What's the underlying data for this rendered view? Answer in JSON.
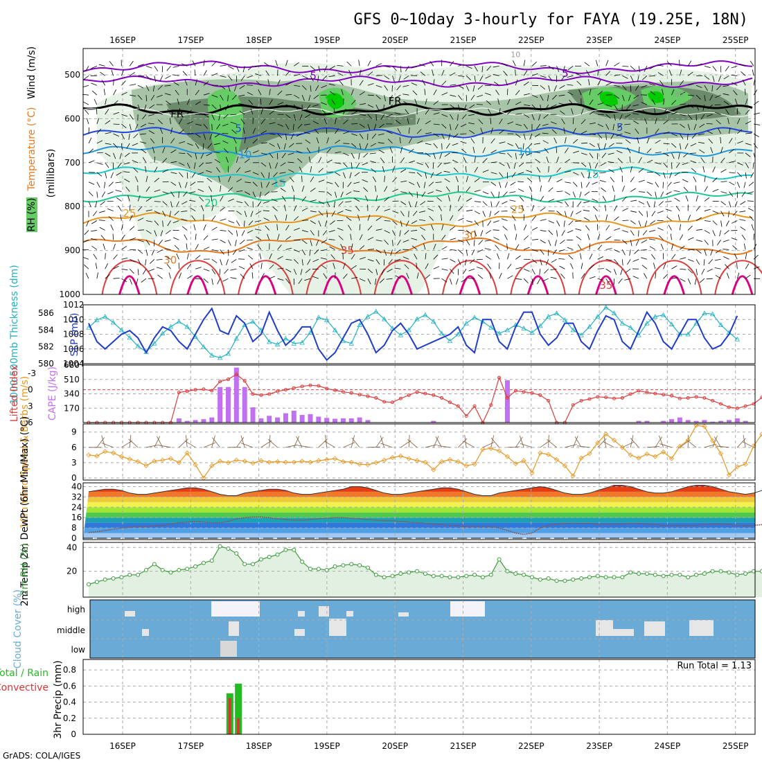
{
  "title": "GFS 0~10day 3-hourly for FAYA (19.25E, 18N)",
  "credit": "GrADS: COLA/IGES",
  "colors": {
    "rh_light": "#e6f2e6",
    "rh_mid": "#a8c4a8",
    "rh_dark": "#6c8a6c",
    "rh_green": "#66cc66",
    "rh_bright": "#00cc00",
    "wind_purple": "#8000c0",
    "freezing": "#000000",
    "t5": "#1e46dc",
    "t10": "#1e96dc",
    "t15": "#1ec8c8",
    "t20": "#1ec88c",
    "t25": "#e6961e",
    "t30": "#e6781e",
    "t35": "#dc3c3c",
    "t40": "#dc0080",
    "slp": "#1e3cc8",
    "thickness": "#20b0c0",
    "lifted": "#dc3c3c",
    "cape": "#c070f0",
    "wind10": "#e6961e",
    "barbs10": "#7a5a3a",
    "rh2m": "#3c9a3c",
    "cloud": "#6aaad6",
    "cloud_fill": "#e6e6e6",
    "precip_total": "#22bb22",
    "precip_conv": "#dd3333"
  },
  "chart_data": {
    "type": "meteogram",
    "x_labels": [
      "16SEP",
      "17SEP",
      "18SEP",
      "19SEP",
      "20SEP",
      "21SEP",
      "22SEP",
      "23SEP",
      "24SEP",
      "25SEP"
    ],
    "x_positions_days": [
      0.5,
      1.5,
      2.5,
      3.5,
      4.5,
      5.5,
      6.5,
      7.5,
      8.5,
      9.5
    ],
    "time_range_days": [
      0.05,
      9.8
    ],
    "panels": [
      {
        "id": "upper_air",
        "ylabel_rh": "RH (%)",
        "ylabel_mb": "(millibars)",
        "ylabel_temp": "Temperature (°C)",
        "ylabel_wind": "Wind (m/s)",
        "yticks": [
          500,
          600,
          700,
          800,
          900,
          1000
        ],
        "ylim": [
          440,
          1000
        ],
        "isotherms": [
          {
            "label": "5",
            "type": "wind",
            "values": [
              {
                "x": 3.3,
                "p": 510
              },
              {
                "x": 7.0,
                "p": 505
              }
            ]
          },
          {
            "label": "FR",
            "type": "freezing"
          },
          {
            "label": "5",
            "values_labels": [
              {
                "x": 2.2,
                "p": 630
              },
              {
                "x": 7.8,
                "p": 628
              }
            ]
          },
          {
            "label": "10",
            "values_labels": [
              {
                "x": 2.3,
                "p": 690
              },
              {
                "x": 6.4,
                "p": 683
              }
            ]
          },
          {
            "label": "15",
            "values_labels": [
              {
                "x": 2.8,
                "p": 755
              },
              {
                "x": 7.4,
                "p": 735
              }
            ]
          },
          {
            "label": "20",
            "values_labels": [
              {
                "x": 1.8,
                "p": 800
              }
            ]
          },
          {
            "label": "25",
            "values_labels": [
              {
                "x": 0.6,
                "p": 823
              },
              {
                "x": 6.3,
                "p": 815
              }
            ]
          },
          {
            "label": "30",
            "values_labels": [
              {
                "x": 1.2,
                "p": 930
              },
              {
                "x": 5.6,
                "p": 873
              }
            ]
          },
          {
            "label": "35",
            "values_labels": [
              {
                "x": 3.8,
                "p": 908
              },
              {
                "x": 7.6,
                "p": 987
              }
            ]
          }
        ],
        "isotach_labels": [
          "10",
          "30",
          "50"
        ]
      },
      {
        "id": "slp_thickness",
        "ylabel_left": "1000-500mb Thickness (dm)",
        "ylabel_right": "SLP (mb)",
        "thickness_ticks": [
          580,
          582,
          584,
          586
        ],
        "slp_ticks": [
          1004,
          1006,
          1008,
          1010,
          1012
        ],
        "slp": [
          1009.5,
          1007,
          1006,
          1007,
          1008,
          1008.5,
          1007.5,
          1005.5,
          1007.5,
          1009,
          1008.5,
          1007,
          1006,
          1008,
          1010,
          1011.5,
          1008.5,
          1008,
          1010.5,
          1009.5,
          1007,
          1008,
          1011,
          1008.5,
          1006.5,
          1007.5,
          1009,
          1009,
          1006,
          1004.5,
          1005.5,
          1007.5,
          1009.5,
          1010,
          1008,
          1005.5,
          1006.5,
          1008.5,
          1009.5,
          1008,
          1006,
          1006.5,
          1007,
          1007.5,
          1008,
          1009,
          1006.5,
          1005.5,
          1010,
          1010,
          1007,
          1006,
          1009,
          1011,
          1011,
          1008,
          1006.5,
          1007.5,
          1009.5,
          1009.5,
          1007,
          1006,
          1008.5,
          1010.5,
          1010,
          1007,
          1006,
          1008.5,
          1011,
          1009.5,
          1007,
          1006,
          1008,
          1010,
          1010,
          1007.5,
          1006,
          1006.5,
          1008,
          1010.5
        ],
        "thickness": [
          584.3,
          585.2,
          585.6,
          584.9,
          584.0,
          583.1,
          582.1,
          581.4,
          582.4,
          583.6,
          584.4,
          585.0,
          584.4,
          583.2,
          582.0,
          581.0,
          580.7,
          581.2,
          583.0,
          584.6,
          585.0,
          584.0,
          582.6,
          582.3,
          583.0,
          582.4,
          582.5,
          583.7,
          585.5,
          585.2,
          584.0,
          582.7,
          582.4,
          584.6,
          585.6,
          586.2,
          585.3,
          584.2,
          583.4,
          584.0,
          585.3,
          585.8,
          585.0,
          583.6,
          582.7,
          583.5,
          584.8,
          585.5,
          585.0,
          584.3,
          583.6,
          584.0,
          584.6,
          584.2,
          583.7,
          584.5,
          585.6,
          586.0,
          585.2,
          584.0,
          583.4,
          584.4,
          585.6,
          586.7,
          586.0,
          584.8,
          584.3,
          583.4,
          584.8,
          585.6,
          585.8,
          584.7,
          583.5,
          583.5,
          584.8,
          586.0,
          585.9,
          584.6,
          583.7,
          582.9
        ]
      },
      {
        "id": "cape_li",
        "ylabel_left": "Lifted Index",
        "ylabel_right": "CAPE (J/kg)",
        "li_ticks": [
          "-3",
          "0",
          "3",
          "6"
        ],
        "cape_ticks": [
          170,
          340,
          510,
          680
        ],
        "cape": [
          0,
          0,
          0,
          0,
          0,
          0,
          0,
          0,
          0,
          0,
          0,
          50,
          20,
          30,
          40,
          60,
          420,
          420,
          650,
          420,
          180,
          50,
          80,
          60,
          110,
          140,
          90,
          100,
          70,
          55,
          45,
          50,
          50,
          60,
          30,
          0,
          0,
          0,
          0,
          0,
          0,
          0,
          20,
          0,
          0,
          0,
          0,
          0,
          0,
          0,
          0,
          500,
          0,
          0,
          0,
          0,
          0,
          0,
          0,
          0,
          0,
          0,
          0,
          0,
          0,
          0,
          0,
          20,
          20,
          0,
          20,
          40,
          60,
          30,
          20,
          30,
          10,
          20,
          30,
          50,
          20,
          0,
          0
        ],
        "lifted_index": [
          6,
          6,
          6,
          6,
          6,
          6,
          6,
          6,
          6,
          6,
          6,
          0.5,
          0.3,
          0,
          -0.1,
          0.2,
          -1.5,
          -1.9,
          -2.8,
          -1.6,
          0.8,
          1.0,
          0.8,
          0.3,
          0,
          -0.3,
          -0.6,
          -0.8,
          -0.7,
          -0.2,
          0.1,
          0.4,
          0.6,
          0.9,
          1.2,
          1.5,
          2.2,
          2.3,
          1.6,
          1.0,
          0.4,
          0.7,
          1.0,
          1.5,
          2.3,
          3.0,
          4.8,
          3.0,
          6,
          2.8,
          -2.2,
          1.5,
          0.2,
          0.4,
          0.6,
          1.0,
          2.0,
          6,
          6,
          2.8,
          2.0,
          1.7,
          1.3,
          1.4,
          1.6,
          1.5,
          0.8,
          0.2,
          0.5,
          0.7,
          0.9,
          1.1,
          1.6,
          1.5,
          1.3,
          1.5,
          2.0,
          2.6,
          3.2,
          3.4,
          3.0,
          2.6,
          1.4
        ]
      },
      {
        "id": "wind10m",
        "ylabel": "10m Wind Speed & Barbs (m/s)",
        "yticks": [
          0,
          3,
          6,
          9
        ],
        "speed": [
          4.5,
          4.3,
          5.2,
          4.9,
          4.2,
          3.7,
          3.2,
          2.4,
          3.3,
          3.5,
          3.8,
          3.0,
          4.9,
          2.6,
          0,
          2.4,
          3.3,
          3.0,
          3.5,
          3.3,
          2.9,
          3.4,
          3.1,
          3.2,
          3.1,
          3.1,
          3.3,
          3.1,
          3.4,
          3.6,
          3.8,
          3.2,
          3.1,
          2.7,
          2.6,
          3.0,
          3.5,
          4.0,
          4.3,
          3.8,
          3.4,
          3.1,
          1.6,
          3.2,
          3.6,
          3.2,
          2.4,
          2.7,
          5.6,
          5.8,
          5.3,
          4.2,
          2.8,
          3.4,
          1.0,
          4.9,
          4.6,
          3.6,
          2.4,
          0.4,
          3.9,
          4.8,
          6.9,
          8.6,
          7.4,
          6.0,
          4.5,
          3.9,
          4.7,
          4.2,
          5.1,
          3.8,
          6.2,
          7.4,
          10.3,
          10.1,
          7.3,
          4.8,
          0.6,
          2.2,
          2.7,
          6.3,
          8.6
        ]
      },
      {
        "id": "temp2m",
        "ylabel": "2m Temp 2m DewPt (6hr Min/Max) (°C)",
        "yticks": [
          0,
          8,
          16,
          24,
          32,
          40
        ],
        "temp": [
          36,
          37,
          38,
          38,
          37,
          35,
          34,
          34,
          35,
          36,
          37,
          38,
          39,
          39,
          38,
          36,
          34,
          33,
          33,
          35,
          36,
          37,
          38,
          38,
          37,
          35,
          34,
          34,
          35,
          36,
          37,
          38,
          40,
          40,
          39,
          37,
          35,
          34,
          34,
          35,
          36,
          37,
          38,
          39,
          39,
          38,
          36,
          34,
          33,
          33,
          35,
          36,
          37,
          38,
          39,
          40,
          39,
          37,
          35,
          34,
          34,
          35,
          37,
          39,
          41,
          41,
          40,
          38,
          36,
          35,
          35,
          36,
          38,
          40,
          41,
          41,
          40,
          38,
          36,
          35,
          34,
          35,
          37
        ],
        "dewpoint": [
          4.5,
          5,
          6,
          7,
          8,
          8.5,
          9,
          9,
          9.5,
          10,
          11,
          12,
          12.5,
          13,
          12.5,
          12,
          12,
          13,
          15,
          16,
          16.5,
          16.5,
          16,
          15,
          14.5,
          14,
          14,
          14.5,
          15,
          15.5,
          16,
          16,
          15.5,
          15,
          14.5,
          14,
          13.5,
          13.5,
          13,
          12.5,
          12,
          11.5,
          11,
          10.5,
          10,
          9.5,
          9,
          9,
          9,
          9,
          8,
          6,
          4,
          3,
          4,
          8,
          10,
          11,
          11.5,
          11.5,
          11.5,
          11.5,
          11,
          11,
          11,
          11,
          11.5,
          11.5,
          11,
          10.5,
          10,
          10,
          10,
          10,
          10,
          10.5,
          11,
          11,
          10.5,
          10,
          9.5,
          10,
          10.5
        ]
      },
      {
        "id": "rh2m",
        "ylabel": "2m RH (%)",
        "yticks": [
          20,
          40
        ],
        "rh": [
          9,
          11,
          13,
          14,
          15,
          17,
          17,
          21,
          26,
          21,
          19,
          21,
          22,
          24,
          27,
          29,
          41,
          39,
          35,
          26,
          26,
          30,
          32,
          34,
          38,
          38,
          28,
          22,
          22,
          21,
          24,
          25,
          26,
          25,
          23,
          17,
          15,
          16,
          18,
          19,
          20,
          18,
          16,
          16,
          15,
          15,
          16,
          17,
          15,
          17,
          30,
          20,
          18,
          17,
          15,
          13,
          14,
          12,
          12,
          13,
          14,
          15,
          16,
          15,
          15,
          15,
          19,
          18,
          18,
          17,
          16,
          17,
          17,
          15,
          17,
          18,
          20,
          20,
          19,
          17,
          18,
          20,
          20
        ]
      },
      {
        "id": "cloud",
        "ylabel": "Cloud Cover (%)",
        "levels": [
          "high",
          "middle",
          "low"
        ]
      },
      {
        "id": "precip",
        "ylabel_left": "Total / Rain Convective",
        "ylabel": "3hr Precip (mm)",
        "yticks": [
          0,
          0.2,
          0.4,
          0.6,
          0.8
        ],
        "run_total_label": "Run Total = 1.13",
        "bars": [
          {
            "x": 2.075,
            "total": 0.51,
            "convective": 0.45
          },
          {
            "x": 2.2,
            "total": 0.63,
            "convective": 0.2
          }
        ]
      }
    ]
  }
}
